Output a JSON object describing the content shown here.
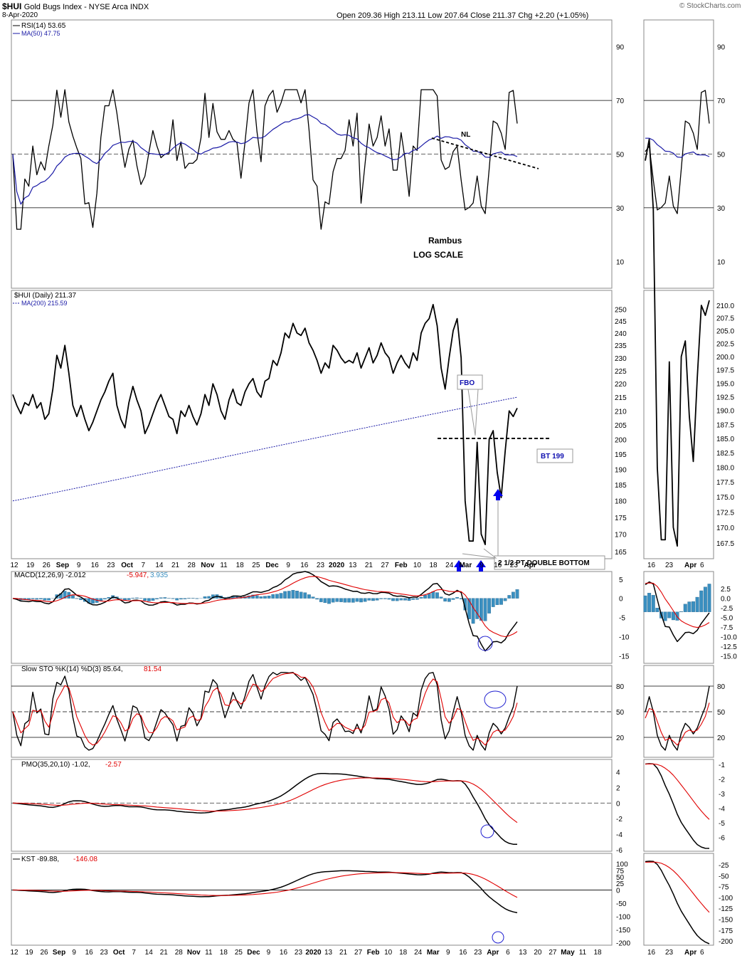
{
  "header": {
    "symbol": "$HUI",
    "name": "Gold Bugs Index - NYSE Arca  INDX",
    "date": "8-Apr-2020",
    "ohlc": "Open 209.36  High 213.11  Low 207.64  Close 211.37  Chg +2.20 (+1.05%)",
    "watermark": "© StockCharts.com"
  },
  "colors": {
    "price": "#000000",
    "ma": "#1a1aa6",
    "signal": "#e00000",
    "hist": "#3a8fc0",
    "grid": "#000000",
    "blueArrow": "#0000ee"
  },
  "annotations": {
    "nl": "NL",
    "rambus": "Rambus",
    "log_scale": "LOG SCALE",
    "fbo": "FBO",
    "bt": "BT 199",
    "double_bottom": "2 1/2 PT DOUBLE BOTTOM"
  },
  "chart_data": [
    {
      "type": "line",
      "title": "RSI(14) 53.65",
      "series": [
        {
          "name": "RSI(14) 53.65",
          "color": "#000000"
        },
        {
          "name": "MA(50) 47.75",
          "color": "#1a1aa6"
        }
      ],
      "y_ticks": [
        90,
        70,
        50,
        30,
        10
      ],
      "ylim": [
        0,
        100
      ]
    },
    {
      "type": "line",
      "title": "$HUI (Daily) 211.37",
      "series": [
        {
          "name": "$HUI (Daily) 211.37",
          "color": "#000000"
        },
        {
          "name": "MA(200) 215.59",
          "color": "#1a1aa6"
        }
      ],
      "y_ticks": [
        250,
        245,
        240,
        235,
        230,
        225,
        220,
        215,
        210,
        205,
        200,
        195,
        190,
        185,
        180,
        175,
        170,
        165
      ],
      "right_y_ticks": [
        "210.0",
        "207.5",
        "205.0",
        "202.5",
        "200.0",
        "197.5",
        "195.0",
        "192.5",
        "190.0",
        "187.5",
        "185.0",
        "182.5",
        "180.0",
        "177.5",
        "175.0",
        "172.5",
        "170.0",
        "167.5"
      ],
      "x_ticks": [
        "12",
        "19",
        "26",
        "Sep",
        "9",
        "16",
        "23",
        "Oct",
        "7",
        "14",
        "21",
        "28",
        "Nov",
        "11",
        "18",
        "25",
        "Dec",
        "9",
        "16",
        "23",
        "2020",
        "13",
        "21",
        "27",
        "Feb",
        "10",
        "18",
        "24",
        "Mar",
        "9",
        "16",
        "23",
        "Apr"
      ],
      "values": [
        216,
        212,
        209,
        213,
        212,
        216,
        211,
        213,
        207,
        209,
        218,
        231,
        226,
        235,
        224,
        212,
        208,
        212,
        207,
        203,
        206,
        210,
        214,
        217,
        221,
        224,
        212,
        207,
        204,
        213,
        219,
        214,
        210,
        202,
        205,
        209,
        213,
        216,
        212,
        208,
        207,
        202,
        210,
        208,
        212,
        208,
        205,
        209,
        216,
        212,
        220,
        216,
        210,
        207,
        214,
        218,
        213,
        212,
        217,
        220,
        222,
        217,
        215,
        221,
        222,
        229,
        227,
        232,
        240,
        238,
        244,
        240,
        239,
        242,
        236,
        233,
        229,
        224,
        228,
        226,
        235,
        233,
        230,
        228,
        229,
        228,
        232,
        226,
        230,
        234,
        228,
        231,
        236,
        232,
        230,
        224,
        228,
        231,
        228,
        226,
        232,
        229,
        240,
        244,
        246,
        252,
        243,
        226,
        218,
        230,
        241,
        246,
        230,
        180,
        168,
        168,
        199,
        170,
        167,
        200,
        203,
        189,
        181,
        196,
        210,
        208,
        211
      ]
    },
    {
      "type": "line",
      "title": "MACD(12,26,9) -2.012, -5.947, 3.935",
      "series": [
        {
          "name": "MACD(12,26,9) -2.012",
          "color": "#000000"
        },
        {
          "name": "-5.947",
          "color": "#e00000"
        },
        {
          "name": "3.935",
          "color": "#3a8fc0"
        }
      ],
      "y_ticks": [
        "5",
        "0",
        "-5",
        "-10",
        "-15"
      ],
      "right_y_ticks": [
        "2.5",
        "0.0",
        "-2.5",
        "-5.0",
        "-7.5",
        "-10.0",
        "-12.5",
        "-15.0"
      ]
    },
    {
      "type": "line",
      "title": "Slow STO %K(14) %D(3) 85.64, 81.54",
      "series": [
        {
          "name": "Slow STO %K(14) %D(3) 85.64",
          "color": "#000000"
        },
        {
          "name": "81.54",
          "color": "#e00000"
        }
      ],
      "y_ticks": [
        80,
        50,
        20
      ]
    },
    {
      "type": "line",
      "title": "PMO(35,20,10) -1.02, -2.57",
      "series": [
        {
          "name": "PMO(35,20,10) -1.02",
          "color": "#000000"
        },
        {
          "name": "-2.57",
          "color": "#e00000"
        }
      ],
      "y_ticks": [
        "4",
        "2",
        "0",
        "-2",
        "-4",
        "-6"
      ],
      "right_y_ticks": [
        "-1",
        "-2",
        "-3",
        "-4",
        "-5",
        "-6"
      ]
    },
    {
      "type": "line",
      "title": "KST -89.88, -146.08",
      "series": [
        {
          "name": "KST -89.88",
          "color": "#000000"
        },
        {
          "name": "-146.08",
          "color": "#e00000"
        }
      ],
      "y_ticks": [
        "100",
        "75",
        "50",
        "25",
        "0",
        "-50",
        "-100",
        "-150",
        "-200"
      ],
      "right_y_ticks": [
        "-25",
        "-50",
        "-75",
        "-100",
        "-125",
        "-150",
        "-175",
        "-200"
      ],
      "x_ticks": [
        "12",
        "19",
        "26",
        "Sep",
        "9",
        "16",
        "23",
        "Oct",
        "7",
        "14",
        "21",
        "28",
        "Nov",
        "11",
        "18",
        "25",
        "Dec",
        "9",
        "16",
        "23",
        "2020",
        "13",
        "21",
        "27",
        "Feb",
        "10",
        "18",
        "24",
        "Mar",
        "9",
        "16",
        "23",
        "Apr",
        "6",
        "13",
        "20",
        "27",
        "May",
        "11",
        "18"
      ]
    }
  ],
  "mini_x_ticks": [
    "16",
    "23",
    "Apr",
    "6"
  ]
}
